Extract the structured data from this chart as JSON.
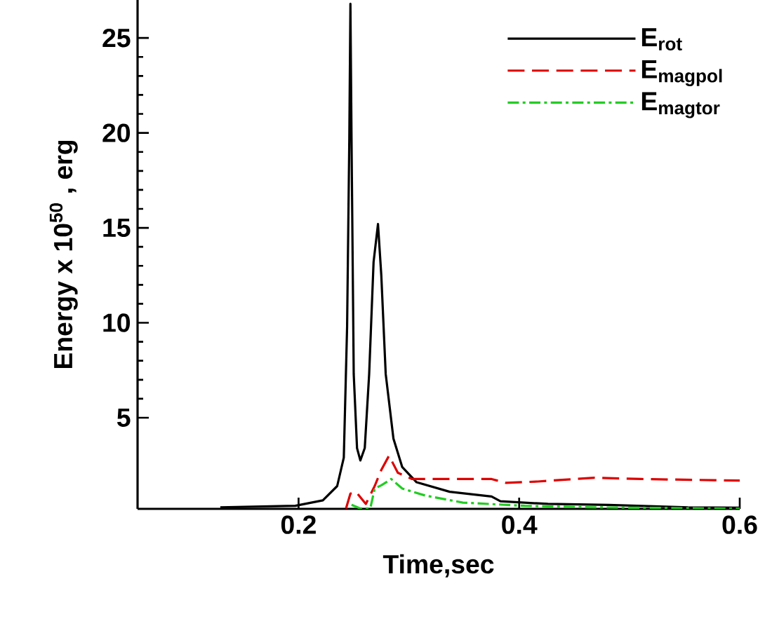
{
  "chart_data": {
    "type": "line",
    "xlabel": "Time,sec",
    "ylabel": "Energy x 10$^{50}$ , erg",
    "xlim": [
      0.054,
      0.6
    ],
    "ylim": [
      0.2,
      27
    ],
    "xticks": [
      0.2,
      0.4,
      0.6
    ],
    "yticks": [
      5,
      10,
      15,
      20,
      25
    ],
    "grid": false,
    "legend": "top right",
    "series": [
      {
        "name": "E$_{rot}$",
        "color": "#000000",
        "line_style": "solid",
        "x": [
          0.129,
          0.197,
          0.222,
          0.235,
          0.241,
          0.244,
          0.246,
          0.247,
          0.248,
          0.25,
          0.253,
          0.256,
          0.26,
          0.264,
          0.268,
          0.272,
          0.275,
          0.279,
          0.286,
          0.294,
          0.307,
          0.337,
          0.375,
          0.383,
          0.426,
          0.481,
          0.553,
          0.6
        ],
        "values": [
          0.28,
          0.36,
          0.65,
          1.4,
          2.9,
          9.8,
          19.7,
          26.8,
          19.7,
          7.3,
          3.4,
          2.75,
          3.4,
          7.3,
          13.2,
          15.2,
          12.5,
          7.3,
          3.9,
          2.4,
          1.6,
          1.1,
          0.85,
          0.6,
          0.46,
          0.41,
          0.28,
          0.26
        ]
      },
      {
        "name": "E$_{magpol}$",
        "color": "#dd0000",
        "line_style": "dashed",
        "x": [
          0.243,
          0.247,
          0.252,
          0.261,
          0.269,
          0.275,
          0.282,
          0.29,
          0.303,
          0.375,
          0.388,
          0.417,
          0.468,
          0.511,
          0.6
        ],
        "values": [
          0.22,
          1.0,
          1.1,
          0.46,
          1.4,
          2.25,
          3.0,
          2.1,
          1.77,
          1.77,
          1.57,
          1.64,
          1.84,
          1.77,
          1.69
        ]
      },
      {
        "name": "E$_{magtor}$",
        "color": "#22cc22",
        "line_style": "dashdot",
        "x": [
          0.248,
          0.256,
          0.265,
          0.269,
          0.275,
          0.284,
          0.294,
          0.315,
          0.349,
          0.405,
          0.468,
          0.6
        ],
        "values": [
          0.41,
          0.22,
          0.22,
          1.27,
          1.44,
          1.77,
          1.27,
          0.9,
          0.53,
          0.36,
          0.28,
          0.21
        ]
      }
    ]
  }
}
